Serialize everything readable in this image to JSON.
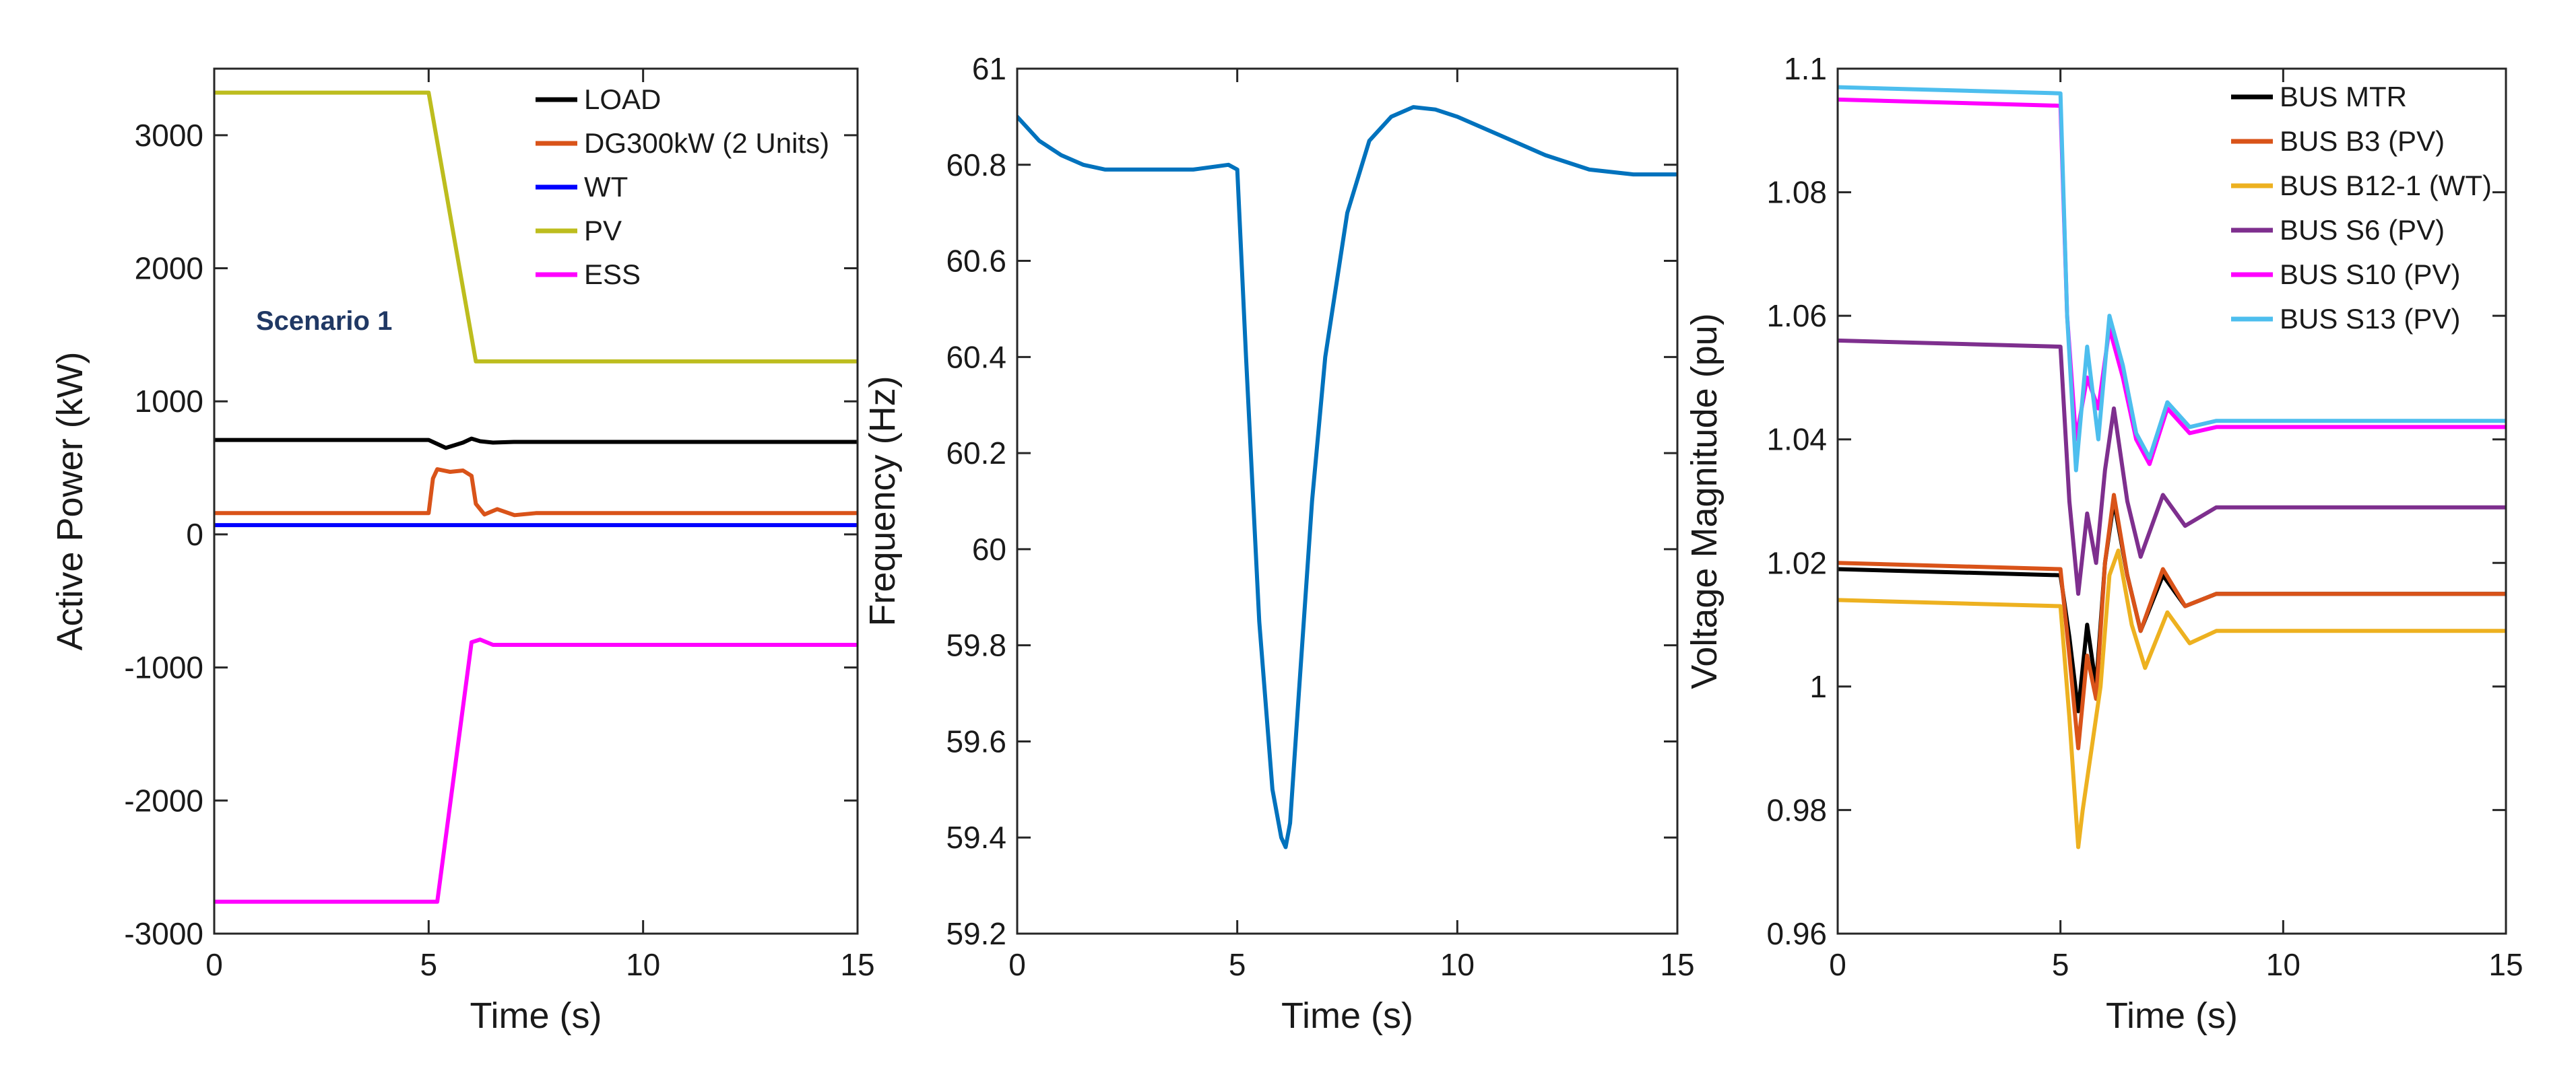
{
  "chart_data": [
    {
      "type": "line",
      "xlabel": "Time (s)",
      "ylabel": "Active Power (kW)",
      "xlim": [
        0,
        15
      ],
      "ylim": [
        -3000,
        3500
      ],
      "xticks": [
        0,
        5,
        10,
        15
      ],
      "yticks": [
        -3000,
        -2000,
        -1000,
        0,
        1000,
        2000,
        3000
      ],
      "grid": false,
      "legend_position": "top-right",
      "annotation": "Scenario 1",
      "series": [
        {
          "name": "LOAD",
          "color": "#000000",
          "x": [
            0,
            5,
            5.2,
            5.4,
            5.6,
            5.8,
            6.0,
            6.2,
            6.5,
            7.0,
            8.0,
            15
          ],
          "y": [
            710,
            710,
            680,
            650,
            670,
            690,
            720,
            700,
            690,
            695,
            695,
            695
          ]
        },
        {
          "name": "DG300kW (2 Units)",
          "color": "#d95319",
          "x": [
            0,
            5.0,
            5.1,
            5.2,
            5.5,
            5.8,
            6.0,
            6.1,
            6.3,
            6.6,
            7.0,
            7.5,
            15
          ],
          "y": [
            160,
            160,
            420,
            490,
            470,
            480,
            440,
            230,
            150,
            190,
            145,
            160,
            160
          ]
        },
        {
          "name": "WT",
          "color": "#0000ff",
          "x": [
            0,
            15
          ],
          "y": [
            70,
            70
          ]
        },
        {
          "name": "PV",
          "color": "#bdbd1e",
          "x": [
            0,
            5.0,
            6.1,
            15
          ],
          "y": [
            3320,
            3320,
            1300,
            1300
          ]
        },
        {
          "name": "ESS",
          "color": "#ff00ff",
          "x": [
            0,
            5.2,
            6.0,
            6.2,
            6.5,
            15
          ],
          "y": [
            -2760,
            -2760,
            -810,
            -790,
            -830,
            -830
          ]
        }
      ]
    },
    {
      "type": "line",
      "xlabel": "Time (s)",
      "ylabel": "Frequency (Hz)",
      "xlim": [
        0,
        15
      ],
      "ylim": [
        59.2,
        61
      ],
      "xticks": [
        0,
        5,
        10,
        15
      ],
      "yticks": [
        59.2,
        59.4,
        59.6,
        59.8,
        60,
        60.2,
        60.4,
        60.6,
        60.8,
        61
      ],
      "grid": false,
      "series": [
        {
          "name": "Frequency",
          "color": "#0072bd",
          "x": [
            0,
            0.5,
            1,
            1.5,
            2,
            3,
            4,
            4.8,
            5.0,
            5.2,
            5.5,
            5.8,
            6.0,
            6.1,
            6.2,
            6.4,
            6.7,
            7.0,
            7.5,
            8.0,
            8.5,
            9.0,
            9.5,
            10,
            11,
            12,
            13,
            14,
            15
          ],
          "y": [
            60.9,
            60.85,
            60.82,
            60.8,
            60.79,
            60.79,
            60.79,
            60.8,
            60.79,
            60.4,
            59.85,
            59.5,
            59.4,
            59.38,
            59.43,
            59.7,
            60.1,
            60.4,
            60.7,
            60.85,
            60.9,
            60.92,
            60.915,
            60.9,
            60.86,
            60.82,
            60.79,
            60.78,
            60.78
          ]
        }
      ]
    },
    {
      "type": "line",
      "xlabel": "Time (s)",
      "ylabel": "Voltage Magnitude (pu)",
      "xlim": [
        0,
        15
      ],
      "ylim": [
        0.96,
        1.1
      ],
      "xticks": [
        0,
        5,
        10,
        15
      ],
      "yticks": [
        0.96,
        0.98,
        1,
        1.02,
        1.04,
        1.06,
        1.08,
        1.1
      ],
      "grid": false,
      "legend_position": "top-right",
      "series": [
        {
          "name": "BUS MTR",
          "color": "#000000",
          "x": [
            0,
            5.0,
            5.2,
            5.4,
            5.6,
            5.8,
            6.0,
            6.2,
            6.5,
            6.8,
            7.3,
            7.8,
            8.5,
            15
          ],
          "y": [
            1.019,
            1.018,
            1.008,
            0.996,
            1.01,
            1.0,
            1.02,
            1.03,
            1.018,
            1.009,
            1.018,
            1.013,
            1.015,
            1.015
          ]
        },
        {
          "name": "BUS B3 (PV)",
          "color": "#d95319",
          "x": [
            0,
            5.0,
            5.2,
            5.4,
            5.6,
            5.8,
            6.0,
            6.2,
            6.5,
            6.8,
            7.3,
            7.8,
            8.5,
            15
          ],
          "y": [
            1.02,
            1.019,
            1.005,
            0.99,
            1.005,
            0.998,
            1.02,
            1.031,
            1.018,
            1.009,
            1.019,
            1.013,
            1.015,
            1.015
          ]
        },
        {
          "name": "BUS B12-1 (WT)",
          "color": "#edb120",
          "x": [
            0,
            5.0,
            5.2,
            5.4,
            5.5,
            5.7,
            5.9,
            6.1,
            6.3,
            6.6,
            6.9,
            7.4,
            7.9,
            8.5,
            15
          ],
          "y": [
            1.014,
            1.013,
            0.995,
            0.974,
            0.98,
            0.99,
            1.0,
            1.018,
            1.022,
            1.01,
            1.003,
            1.012,
            1.007,
            1.009,
            1.009
          ]
        },
        {
          "name": "BUS S6 (PV)",
          "color": "#7e2f8e",
          "x": [
            0,
            5.0,
            5.2,
            5.4,
            5.6,
            5.8,
            6.0,
            6.2,
            6.5,
            6.8,
            7.3,
            7.8,
            8.5,
            15
          ],
          "y": [
            1.056,
            1.055,
            1.03,
            1.015,
            1.028,
            1.02,
            1.035,
            1.045,
            1.03,
            1.021,
            1.031,
            1.026,
            1.029,
            1.029
          ]
        },
        {
          "name": "BUS S10 (PV)",
          "color": "#ff00ff",
          "x": [
            0,
            5.0,
            5.15,
            5.35,
            5.6,
            5.85,
            6.1,
            6.4,
            6.7,
            7.0,
            7.4,
            7.9,
            8.5,
            15
          ],
          "y": [
            1.095,
            1.094,
            1.06,
            1.04,
            1.05,
            1.045,
            1.058,
            1.05,
            1.04,
            1.036,
            1.045,
            1.041,
            1.042,
            1.042
          ]
        },
        {
          "name": "BUS S13 (PV)",
          "color": "#4dbeee",
          "x": [
            0,
            5.0,
            5.15,
            5.35,
            5.6,
            5.85,
            6.1,
            6.4,
            6.7,
            7.0,
            7.4,
            7.9,
            8.5,
            15
          ],
          "y": [
            1.097,
            1.096,
            1.06,
            1.035,
            1.055,
            1.04,
            1.06,
            1.052,
            1.041,
            1.037,
            1.046,
            1.042,
            1.043,
            1.043
          ]
        }
      ]
    }
  ]
}
